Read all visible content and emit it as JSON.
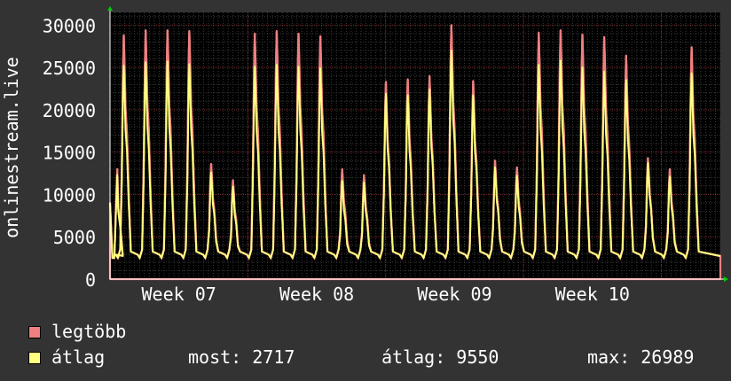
{
  "chart_data": {
    "type": "area",
    "title": "",
    "xlabel": "",
    "ylabel": "onlinestream.live",
    "ylim": [
      0,
      31500
    ],
    "yticks": [
      0,
      5000,
      10000,
      15000,
      20000,
      25000,
      30000
    ],
    "xticks": [
      "Week 07",
      "Week 08",
      "Week 09",
      "Week 10"
    ],
    "x_unit": "day",
    "xlim_days": [
      0,
      31
    ],
    "xtick_days": [
      3.5,
      10.5,
      17.5,
      24.5
    ],
    "grid": true,
    "legend_placement": "bottom-left",
    "series": [
      {
        "name": "legtöbb",
        "color": "#f08080",
        "style": "area",
        "daily_peaks": [
          13000,
          28800,
          29400,
          29400,
          29300,
          13600,
          11700,
          29000,
          29300,
          29000,
          28700,
          13000,
          12300,
          23300,
          23600,
          24000,
          30000,
          23400,
          14000,
          13200,
          29100,
          29400,
          28900,
          28600,
          26400,
          14300,
          13000,
          27400
        ]
      },
      {
        "name": "átlag",
        "color": "#ffff80",
        "style": "line",
        "daily_peaks": [
          12300,
          25200,
          25600,
          25700,
          25400,
          12600,
          10900,
          25100,
          25300,
          25100,
          24900,
          11600,
          11400,
          21900,
          21700,
          22400,
          27000,
          21700,
          13200,
          12200,
          25300,
          25800,
          25000,
          24500,
          23500,
          13700,
          12100,
          24300
        ]
      }
    ],
    "daily_trough": 2500,
    "start_value": 9000,
    "end_value": 2717
  },
  "legend": {
    "max_label": "legtöbb",
    "avg_label": "átlag",
    "now_text": "most: 2717",
    "avg_text": "átlag: 9550",
    "max_text": "max: 26989"
  }
}
